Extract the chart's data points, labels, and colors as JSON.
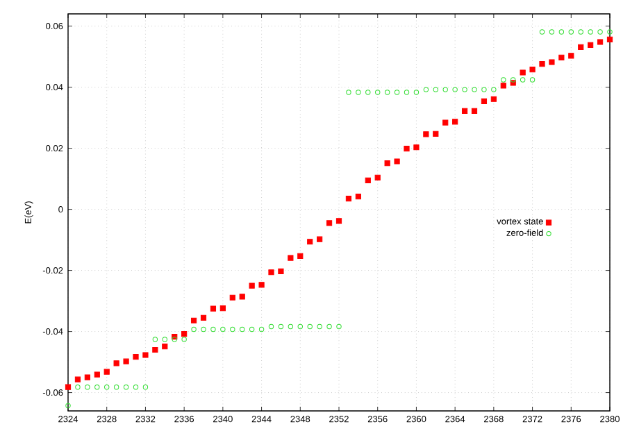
{
  "chart_data": {
    "type": "scatter",
    "ylabel": "E(eV)",
    "x": [
      2324,
      2325,
      2326,
      2327,
      2328,
      2329,
      2330,
      2331,
      2332,
      2333,
      2334,
      2335,
      2336,
      2337,
      2338,
      2339,
      2340,
      2341,
      2342,
      2343,
      2344,
      2345,
      2346,
      2347,
      2348,
      2349,
      2350,
      2351,
      2352,
      2353,
      2354,
      2355,
      2356,
      2357,
      2358,
      2359,
      2360,
      2361,
      2362,
      2363,
      2364,
      2365,
      2366,
      2367,
      2368,
      2369,
      2370,
      2371,
      2372,
      2373,
      2374,
      2375,
      2376,
      2377,
      2378,
      2379,
      2380
    ],
    "series": [
      {
        "name": "vortex state",
        "color": "#ff0000",
        "marker": "square",
        "values": [
          -0.0582,
          -0.0557,
          -0.055,
          -0.0541,
          -0.0532,
          -0.0504,
          -0.0498,
          -0.0483,
          -0.0477,
          -0.046,
          -0.0449,
          -0.0417,
          -0.0408,
          -0.0364,
          -0.0355,
          -0.0325,
          -0.0324,
          -0.0289,
          -0.0286,
          -0.025,
          -0.0247,
          -0.0206,
          -0.0203,
          -0.0159,
          -0.0153,
          -0.0106,
          -0.0098,
          -0.0045,
          -0.0038,
          0.0035,
          0.0042,
          0.0095,
          0.0104,
          0.0151,
          0.0157,
          0.0199,
          0.0203,
          0.0246,
          0.0247,
          0.0284,
          0.0287,
          0.0322,
          0.0322,
          0.0354,
          0.0361,
          0.0405,
          0.0414,
          0.0448,
          0.0458,
          0.0476,
          0.0482,
          0.0497,
          0.0503,
          0.0531,
          0.0538,
          0.0548,
          0.0556
        ]
      },
      {
        "name": "zero-field",
        "color": "#33dd33",
        "marker": "circle",
        "values": [
          -0.0643,
          -0.0582,
          -0.0582,
          -0.0582,
          -0.0582,
          -0.0582,
          -0.0582,
          -0.0582,
          -0.0582,
          -0.0426,
          -0.0426,
          -0.0426,
          -0.0426,
          -0.0393,
          -0.0393,
          -0.0393,
          -0.0393,
          -0.0393,
          -0.0393,
          -0.0393,
          -0.0393,
          -0.0384,
          -0.0384,
          -0.0384,
          -0.0384,
          -0.0384,
          -0.0384,
          -0.0384,
          -0.0384,
          0.0383,
          0.0383,
          0.0383,
          0.0383,
          0.0383,
          0.0383,
          0.0383,
          0.0383,
          0.0392,
          0.0392,
          0.0392,
          0.0392,
          0.0392,
          0.0392,
          0.0392,
          0.0392,
          0.0424,
          0.0424,
          0.0424,
          0.0424,
          0.0581,
          0.0581,
          0.0581,
          0.0581,
          0.0581,
          0.0581,
          0.0581,
          0.0581
        ]
      }
    ],
    "xlim": [
      2324,
      2380
    ],
    "ylim": [
      -0.066,
      0.064
    ],
    "xticks": [
      2324,
      2328,
      2332,
      2336,
      2340,
      2344,
      2348,
      2352,
      2356,
      2360,
      2364,
      2368,
      2372,
      2376,
      2380
    ],
    "yticks": [
      -0.06,
      -0.04,
      -0.02,
      0,
      0.02,
      0.04,
      0.06
    ],
    "grid": true,
    "legend": "right"
  }
}
